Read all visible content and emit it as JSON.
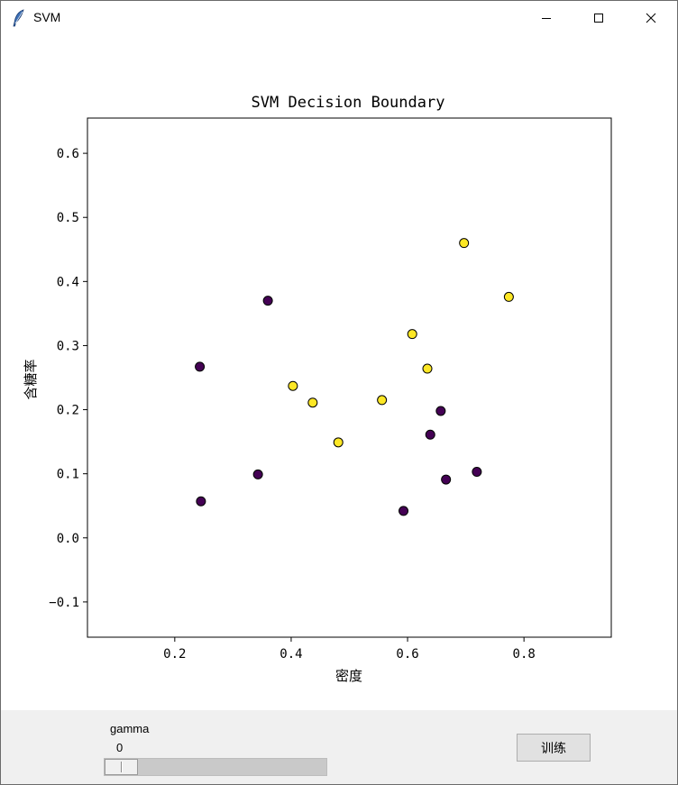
{
  "window": {
    "title": "SVM",
    "icon": "feather-icon",
    "controls": [
      "minimize-icon",
      "maximize-icon",
      "close-icon"
    ]
  },
  "chart_data": {
    "type": "scatter",
    "title": "SVM Decision Boundary",
    "xlabel": "密度",
    "ylabel": "含糖率",
    "xlim": [
      0.05,
      0.95
    ],
    "ylim": [
      -0.155,
      0.655
    ],
    "xticks": [
      0.2,
      0.4,
      0.6,
      0.8
    ],
    "xtick_labels": [
      "0.2",
      "0.4",
      "0.6",
      "0.8"
    ],
    "yticks": [
      -0.1,
      0.0,
      0.1,
      0.2,
      0.3,
      0.4,
      0.5,
      0.6
    ],
    "ytick_labels": [
      "−0.1",
      "0.0",
      "0.1",
      "0.2",
      "0.3",
      "0.4",
      "0.5",
      "0.6"
    ],
    "grid": false,
    "series": [
      {
        "class": 0,
        "color": "#440154",
        "points": [
          [
            0.243,
            0.267
          ],
          [
            0.245,
            0.057
          ],
          [
            0.343,
            0.099
          ],
          [
            0.36,
            0.37
          ],
          [
            0.593,
            0.042
          ],
          [
            0.639,
            0.161
          ],
          [
            0.657,
            0.198
          ],
          [
            0.666,
            0.091
          ],
          [
            0.719,
            0.103
          ]
        ]
      },
      {
        "class": 1,
        "color": "#fde725",
        "points": [
          [
            0.403,
            0.237
          ],
          [
            0.437,
            0.211
          ],
          [
            0.481,
            0.149
          ],
          [
            0.556,
            0.215
          ],
          [
            0.608,
            0.318
          ],
          [
            0.634,
            0.264
          ],
          [
            0.697,
            0.46
          ],
          [
            0.774,
            0.376
          ]
        ]
      }
    ]
  },
  "controls": {
    "gamma_label": "gamma",
    "gamma_value": "0",
    "gamma_level": 0,
    "train_label": "训练"
  }
}
